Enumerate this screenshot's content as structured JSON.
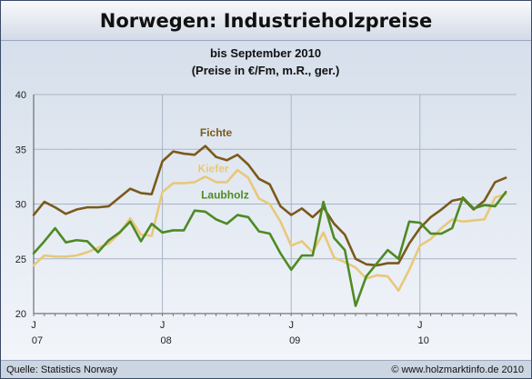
{
  "title": "Norwegen: Industrieholzpreise",
  "footer": {
    "source": "Quelle: Statistics Norway",
    "credit": "© www.holzmarktinfo.de 2010"
  },
  "chart_data": {
    "type": "line",
    "subtitle_lines": [
      "bis September 2010",
      "(Preise in €/Fm, m.R., ger.)"
    ],
    "ylim": [
      20,
      40
    ],
    "yticks": [
      20,
      25,
      30,
      35,
      40
    ],
    "grid": true,
    "xlim": [
      0,
      45
    ],
    "x_ticks": [
      {
        "x": 0,
        "label": "J",
        "year": "07"
      },
      {
        "x": 12,
        "label": "J",
        "year": "08"
      },
      {
        "x": 24,
        "label": "J",
        "year": "09"
      },
      {
        "x": 36,
        "label": "J",
        "year": "10"
      }
    ],
    "series": [
      {
        "name": "Fichte",
        "color": "#7a5a1a",
        "values": [
          29.0,
          30.2,
          29.7,
          29.1,
          29.5,
          29.7,
          29.7,
          29.8,
          30.6,
          31.4,
          31.0,
          30.9,
          33.9,
          34.8,
          34.6,
          34.5,
          35.3,
          34.3,
          34.0,
          34.5,
          33.6,
          32.3,
          31.8,
          29.8,
          29.0,
          29.6,
          28.8,
          29.7,
          28.2,
          27.2,
          25.0,
          24.5,
          24.4,
          24.6,
          24.6,
          26.4,
          27.8,
          28.8,
          29.5,
          30.3,
          30.5,
          29.5,
          30.3,
          32.0,
          32.4
        ]
      },
      {
        "name": "Kiefer",
        "color": "#e8c87a",
        "values": [
          24.4,
          25.3,
          25.2,
          25.2,
          25.3,
          25.6,
          26.0,
          26.4,
          27.3,
          28.7,
          27.2,
          27.1,
          31.1,
          31.9,
          31.9,
          32.0,
          32.5,
          32.0,
          32.0,
          33.1,
          32.4,
          30.5,
          30.0,
          28.4,
          26.2,
          26.6,
          25.6,
          27.4,
          25.1,
          24.7,
          24.2,
          23.2,
          23.5,
          23.4,
          22.1,
          24.0,
          26.2,
          26.8,
          27.8,
          28.6,
          28.4,
          28.5,
          28.6,
          30.6,
          30.9
        ]
      },
      {
        "name": "Laubholz",
        "color": "#4e8a24",
        "values": [
          25.5,
          26.6,
          27.8,
          26.5,
          26.7,
          26.6,
          25.6,
          26.7,
          27.4,
          28.4,
          26.6,
          28.2,
          27.4,
          27.6,
          27.6,
          29.4,
          29.3,
          28.6,
          28.2,
          29.0,
          28.8,
          27.5,
          27.3,
          25.5,
          24.0,
          25.3,
          25.3,
          30.2,
          26.9,
          25.8,
          20.7,
          23.4,
          24.6,
          25.8,
          25.0,
          28.4,
          28.3,
          27.3,
          27.3,
          27.8,
          30.6,
          29.6,
          29.9,
          29.8,
          31.1
        ]
      }
    ],
    "series_labels": [
      {
        "series": 0,
        "text": "Fichte",
        "x": 15.5,
        "y": 36.2
      },
      {
        "series": 1,
        "text": "Kiefer",
        "x": 15.3,
        "y": 32.9
      },
      {
        "series": 2,
        "text": "Laubholz",
        "x": 15.6,
        "y": 30.5
      }
    ]
  }
}
